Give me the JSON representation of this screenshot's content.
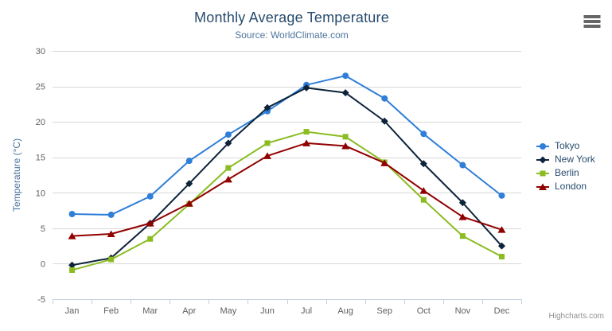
{
  "chart_data": {
    "type": "line",
    "title": "Monthly Average Temperature",
    "subtitle": "Source: WorldClimate.com",
    "xlabel": "",
    "ylabel": "Temperature (°C)",
    "ylim": [
      -5,
      30
    ],
    "yticks": [
      -5,
      0,
      5,
      10,
      15,
      20,
      25,
      30
    ],
    "grid": true,
    "legend_position": "right",
    "categories": [
      "Jan",
      "Feb",
      "Mar",
      "Apr",
      "May",
      "Jun",
      "Jul",
      "Aug",
      "Sep",
      "Oct",
      "Nov",
      "Dec"
    ],
    "series": [
      {
        "name": "Tokyo",
        "color": "#2f7ed8",
        "marker": "circle",
        "values": [
          7.0,
          6.9,
          9.5,
          14.5,
          18.2,
          21.5,
          25.2,
          26.5,
          23.3,
          18.3,
          13.9,
          9.6
        ]
      },
      {
        "name": "New York",
        "color": "#0d233a",
        "marker": "diamond",
        "values": [
          -0.2,
          0.8,
          5.7,
          11.3,
          17.0,
          22.0,
          24.8,
          24.1,
          20.1,
          14.1,
          8.6,
          2.5
        ]
      },
      {
        "name": "Berlin",
        "color": "#8bbc21",
        "marker": "square",
        "values": [
          -0.9,
          0.6,
          3.5,
          8.4,
          13.5,
          17.0,
          18.6,
          17.9,
          14.3,
          9.0,
          3.9,
          1.0
        ]
      },
      {
        "name": "London",
        "color": "#910000",
        "marker": "triangle",
        "values": [
          3.9,
          4.2,
          5.7,
          8.5,
          11.9,
          15.2,
          17.0,
          16.6,
          14.2,
          10.3,
          6.6,
          4.8
        ]
      }
    ]
  },
  "colors": {
    "title": "#274b6d",
    "subtitle": "#4d759e",
    "axis_title": "#4d759e",
    "axis_labels": "#606060",
    "gridline": "#d8d8d8",
    "axis_line": "#c0d0e0",
    "legend_text": "#274b6d",
    "credits_text": "#909090"
  },
  "toolbar": {
    "context_menu_icon": "hamburger-icon"
  },
  "credits": {
    "text": "Highcharts.com"
  }
}
